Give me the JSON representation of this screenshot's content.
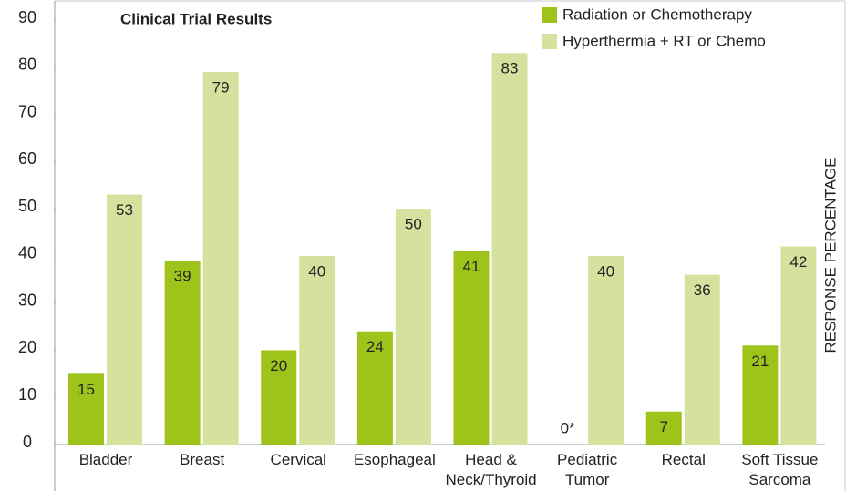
{
  "chart_data": {
    "type": "bar",
    "title": "Clinical Trial Results",
    "y_label": "RESPONSE PERCENTAGE",
    "categories": [
      "Bladder",
      "Breast",
      "Cervical",
      "Esophageal",
      "Head & Neck/Thyroid",
      "Pediatric Tumor",
      "Rectal",
      "Soft Tissue Sarcoma"
    ],
    "series": [
      {
        "name": "Radiation or Chemotherapy",
        "color": "#9ec41c",
        "values": [
          15,
          39,
          20,
          24,
          41,
          0,
          7,
          21
        ],
        "value_labels": [
          "15",
          "39",
          "20",
          "24",
          "41",
          "0*",
          "7",
          "21"
        ]
      },
      {
        "name": "Hyperthermia + RT or Chemo",
        "color": "#d5e19d",
        "values": [
          53,
          79,
          40,
          50,
          83,
          40,
          36,
          42
        ]
      }
    ],
    "ylim": [
      0,
      90
    ],
    "yticks": [
      0,
      10,
      20,
      30,
      40,
      50,
      60,
      70,
      80,
      90
    ]
  }
}
